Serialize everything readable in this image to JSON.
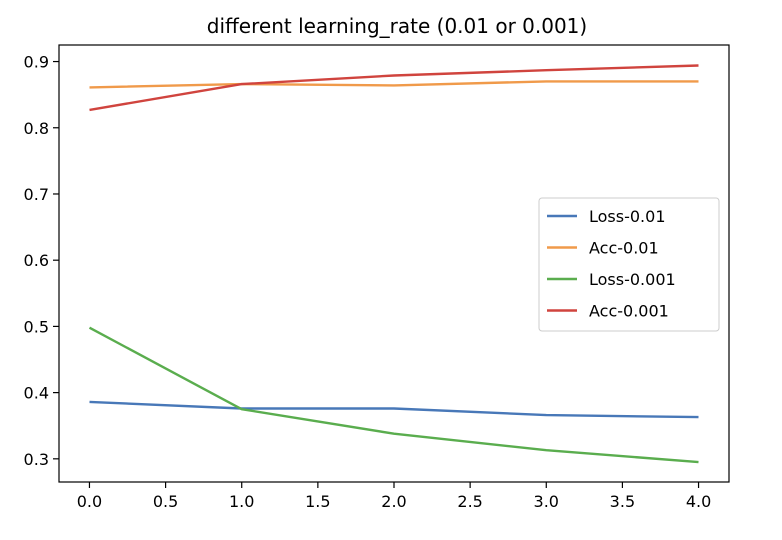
{
  "chart_data": {
    "type": "line",
    "title": "different learning_rate (0.01 or 0.001)",
    "xlabel": "",
    "ylabel": "",
    "xlim": [
      -0.2,
      4.2
    ],
    "ylim": [
      0.265,
      0.925
    ],
    "x_ticks": [
      0.0,
      0.5,
      1.0,
      1.5,
      2.0,
      2.5,
      3.0,
      3.5,
      4.0
    ],
    "x_tick_labels": [
      "0.0",
      "0.5",
      "1.0",
      "1.5",
      "2.0",
      "2.5",
      "3.0",
      "3.5",
      "4.0"
    ],
    "y_ticks": [
      0.3,
      0.4,
      0.5,
      0.6,
      0.7,
      0.8,
      0.9
    ],
    "y_tick_labels": [
      "0.3",
      "0.4",
      "0.5",
      "0.6",
      "0.7",
      "0.8",
      "0.9"
    ],
    "grid": false,
    "legend_position": "center-right",
    "x": [
      0,
      1,
      2,
      3,
      4
    ],
    "series": [
      {
        "name": "Loss-0.01",
        "color": "#4878b8",
        "values": [
          0.386,
          0.376,
          0.376,
          0.366,
          0.363
        ]
      },
      {
        "name": "Acc-0.01",
        "color": "#f09a4a",
        "values": [
          0.861,
          0.866,
          0.864,
          0.87,
          0.87
        ]
      },
      {
        "name": "Loss-0.001",
        "color": "#5aad4e",
        "values": [
          0.498,
          0.375,
          0.338,
          0.313,
          0.295
        ]
      },
      {
        "name": "Acc-0.001",
        "color": "#d0443e",
        "values": [
          0.827,
          0.866,
          0.879,
          0.887,
          0.894
        ]
      }
    ]
  }
}
